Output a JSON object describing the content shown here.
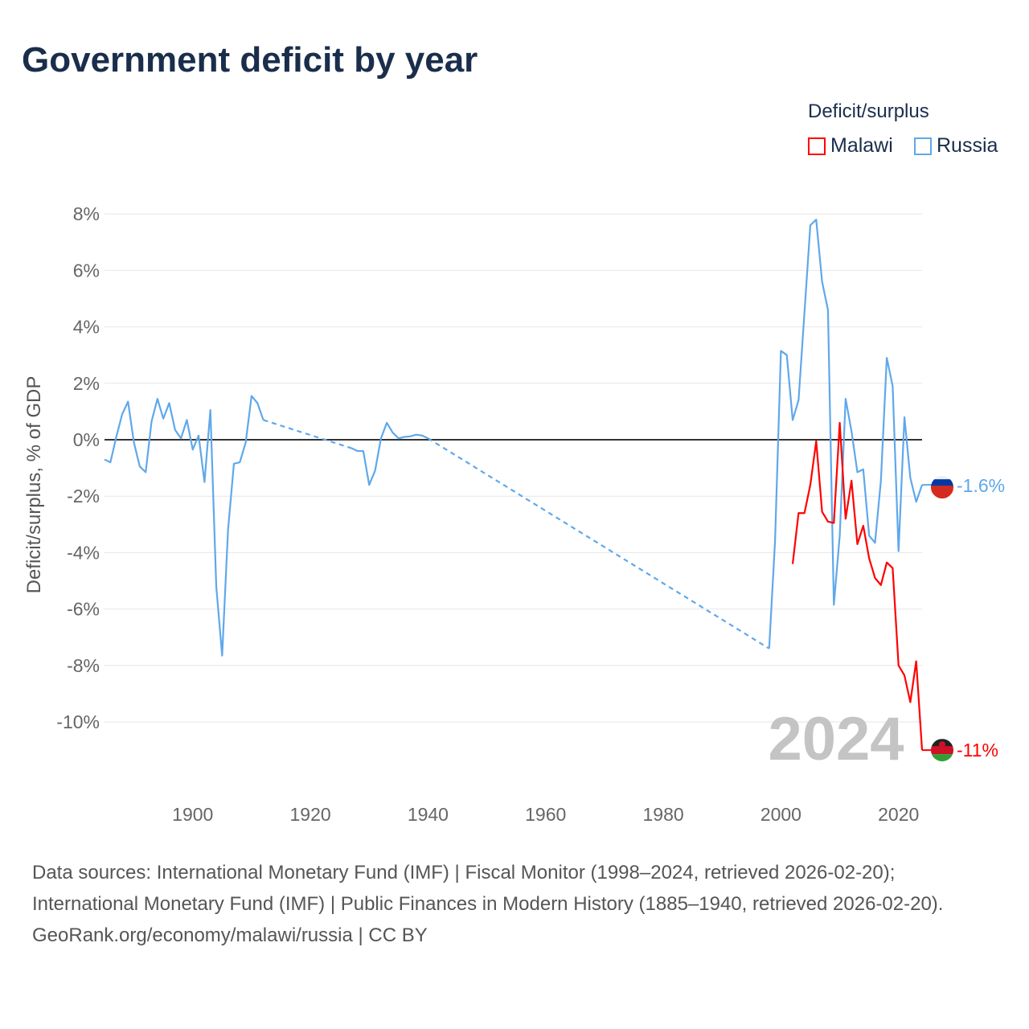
{
  "title": "Government deficit by year",
  "legend": {
    "title": "Deficit/surplus",
    "items": [
      {
        "label": "Malawi",
        "color": "#ff0000"
      },
      {
        "label": "Russia",
        "color": "#5fa8ea"
      }
    ]
  },
  "watermark_year": "2024",
  "end_labels": {
    "russia": "-1.6%",
    "malawi": "-11%"
  },
  "footer": {
    "sources": "Data sources: International Monetary Fund (IMF) | Fiscal Monitor (1998–2024, retrieved 2026-02-20); International Monetary Fund (IMF) | Public Finances in Modern History (1885–1940, retrieved 2026-02-20).",
    "credit": "GeoRank.org/economy/malawi/russia | CC BY"
  },
  "chart_data": {
    "type": "line",
    "title": "Government deficit by year",
    "xlabel": "",
    "ylabel": "Deficit/surplus, % of GDP",
    "xlim": [
      1885,
      2024
    ],
    "ylim": [
      -12.3,
      8.6
    ],
    "xticks": [
      1900,
      1920,
      1940,
      1960,
      1980,
      2000,
      2020
    ],
    "yticks": [
      8,
      6,
      4,
      2,
      0,
      -2,
      -4,
      -6,
      -8,
      -10
    ],
    "ytick_labels": [
      "8%",
      "6%",
      "4%",
      "2%",
      "0%",
      "-2%",
      "-4%",
      "-6%",
      "-8%",
      "-10%"
    ],
    "grid": true,
    "legend_position": "top-right",
    "series": [
      {
        "name": "Russia",
        "color": "#5fa8ea",
        "points": [
          [
            1885,
            -0.7
          ],
          [
            1886,
            -0.8
          ],
          [
            1887,
            0.1
          ],
          [
            1888,
            0.9
          ],
          [
            1889,
            1.35
          ],
          [
            1890,
            -0.1
          ],
          [
            1891,
            -0.95
          ],
          [
            1892,
            -1.15
          ],
          [
            1893,
            0.65
          ],
          [
            1894,
            1.45
          ],
          [
            1895,
            0.75
          ],
          [
            1896,
            1.3
          ],
          [
            1897,
            0.35
          ],
          [
            1898,
            0.05
          ],
          [
            1899,
            0.7
          ],
          [
            1900,
            -0.35
          ],
          [
            1901,
            0.15
          ],
          [
            1902,
            -1.5
          ],
          [
            1903,
            1.05
          ],
          [
            1904,
            -5.2
          ],
          [
            1905,
            -7.65
          ],
          [
            1906,
            -3.2
          ],
          [
            1907,
            -0.85
          ],
          [
            1908,
            -0.8
          ],
          [
            1909,
            -0.1
          ],
          [
            1910,
            1.55
          ],
          [
            1911,
            1.3
          ],
          [
            1912,
            0.7
          ],
          [
            1927,
            -0.3
          ],
          [
            1928,
            -0.4
          ],
          [
            1929,
            -0.4
          ],
          [
            1930,
            -1.6
          ],
          [
            1931,
            -1.1
          ],
          [
            1932,
            0.05
          ],
          [
            1933,
            0.6
          ],
          [
            1934,
            0.25
          ],
          [
            1935,
            0.05
          ],
          [
            1936,
            0.1
          ],
          [
            1937,
            0.12
          ],
          [
            1938,
            0.18
          ],
          [
            1939,
            0.15
          ],
          [
            1940,
            0.05
          ],
          [
            1998,
            -7.4
          ],
          [
            1999,
            -3.6
          ],
          [
            2000,
            3.15
          ],
          [
            2001,
            3.0
          ],
          [
            2002,
            0.7
          ],
          [
            2003,
            1.4
          ],
          [
            2004,
            4.5
          ],
          [
            2005,
            7.6
          ],
          [
            2006,
            7.8
          ],
          [
            2007,
            5.6
          ],
          [
            2008,
            4.6
          ],
          [
            2009,
            -5.85
          ],
          [
            2010,
            -3.4
          ],
          [
            2011,
            1.45
          ],
          [
            2012,
            0.3
          ],
          [
            2013,
            -1.15
          ],
          [
            2014,
            -1.05
          ],
          [
            2015,
            -3.4
          ],
          [
            2016,
            -3.65
          ],
          [
            2017,
            -1.45
          ],
          [
            2018,
            2.9
          ],
          [
            2019,
            1.9
          ],
          [
            2020,
            -3.95
          ],
          [
            2021,
            0.8
          ],
          [
            2022,
            -1.35
          ],
          [
            2023,
            -2.2
          ],
          [
            2024,
            -1.6
          ]
        ]
      },
      {
        "name": "Malawi",
        "color": "#ff0000",
        "points": [
          [
            2002,
            -4.4
          ],
          [
            2003,
            -2.6
          ],
          [
            2004,
            -2.6
          ],
          [
            2005,
            -1.6
          ],
          [
            2006,
            -0.05
          ],
          [
            2007,
            -2.55
          ],
          [
            2008,
            -2.9
          ],
          [
            2009,
            -2.95
          ],
          [
            2010,
            0.6
          ],
          [
            2011,
            -2.8
          ],
          [
            2012,
            -1.45
          ],
          [
            2013,
            -3.7
          ],
          [
            2014,
            -3.05
          ],
          [
            2015,
            -4.2
          ],
          [
            2016,
            -4.9
          ],
          [
            2017,
            -5.15
          ],
          [
            2018,
            -4.35
          ],
          [
            2019,
            -4.55
          ],
          [
            2020,
            -8.0
          ],
          [
            2021,
            -8.35
          ],
          [
            2022,
            -9.3
          ],
          [
            2023,
            -7.85
          ],
          [
            2024,
            -11.0
          ]
        ]
      }
    ]
  }
}
